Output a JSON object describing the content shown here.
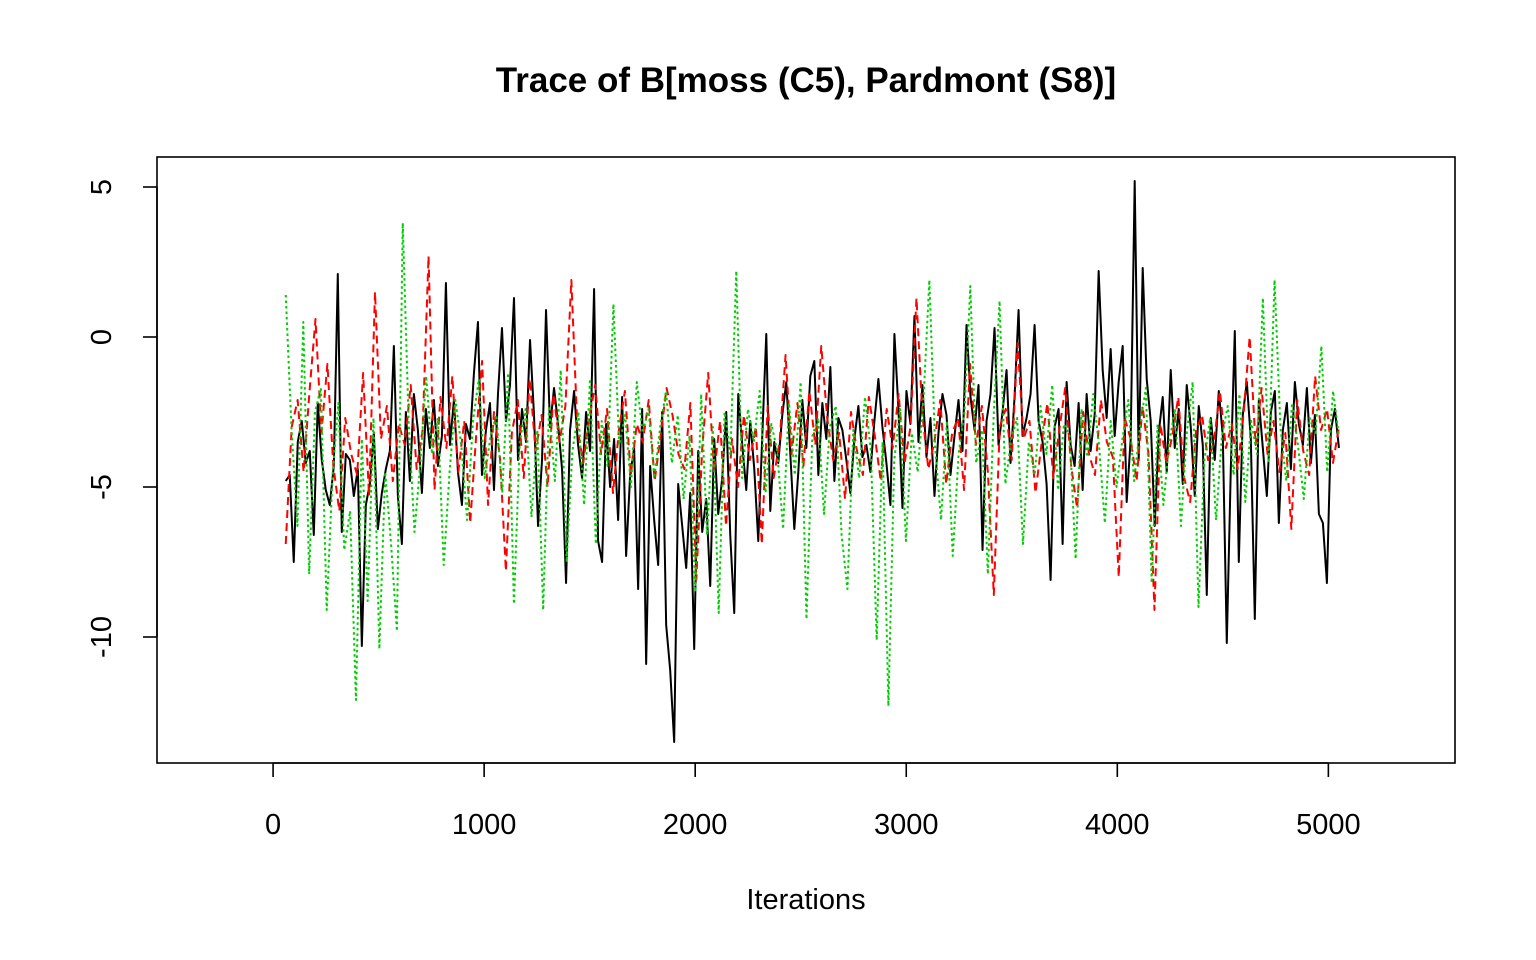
{
  "chart_data": {
    "type": "line",
    "title": "Trace of B[moss (C5), Pardmont (S8)]",
    "xlabel": "Iterations",
    "ylabel": "",
    "xlim": [
      -550,
      5600
    ],
    "ylim": [
      -14.2,
      6.0
    ],
    "x_ticks": [
      0,
      1000,
      2000,
      3000,
      4000,
      5000
    ],
    "y_ticks": [
      5,
      0,
      -5,
      -10
    ],
    "x_range": [
      60,
      5050
    ],
    "grid": false,
    "legend": "none",
    "series": [
      {
        "color": "#000000",
        "style": "solid",
        "values": [
          -4.8,
          -4.6,
          -7.5,
          -3.5,
          -2.8,
          -4.2,
          -3.8,
          -6.6,
          -2.2,
          -4.1,
          -5.1,
          -5.6,
          -4.3,
          2.1,
          -6.5,
          -3.9,
          -4.1,
          -5.3,
          -4.4,
          -10.3,
          -5.6,
          -4.9,
          -3.2,
          -6.4,
          -5.2,
          -4.4,
          -3.8,
          -0.3,
          -5.3,
          -6.9,
          -2.5,
          -4.8,
          -1.9,
          -3.1,
          -5.2,
          -2.4,
          -3.7,
          -2.1,
          -4.3,
          -3.3,
          1.8,
          -3.6,
          -2.1,
          -4.5,
          -5.6,
          -2.9,
          -3.4,
          -1.2,
          0.5,
          -4.6,
          -3.1,
          -2.2,
          -5.1,
          -1.9,
          0.3,
          -2.8,
          -1.6,
          1.3,
          -4.1,
          -2.4,
          -3.5,
          -0.1,
          -2.6,
          -6.3,
          -4.1,
          0.9,
          -3.0,
          -1.7,
          -2.9,
          -4.4,
          -8.2,
          -3.1,
          -1.8,
          -3.6,
          -4.7,
          -2.5,
          -3.8,
          1.6,
          -6.8,
          -7.5,
          -2.9,
          -5.0,
          -3.4,
          -6.1,
          -2.0,
          -7.3,
          -4.6,
          -3.7,
          -8.4,
          -2.4,
          -10.9,
          -4.3,
          -6.1,
          -7.6,
          -2.5,
          -9.6,
          -11.1,
          -13.5,
          -4.9,
          -6.3,
          -7.7,
          -5.2,
          -10.4,
          -3.8,
          -6.5,
          -5.4,
          -8.3,
          -3.4,
          -5.9,
          -4.7,
          -2.5,
          -6.6,
          -9.2,
          -1.9,
          -3.6,
          -5.1,
          -2.8,
          -4.4,
          -6.8,
          -3.3,
          0.1,
          -5.8,
          -3.5,
          -4.2,
          -2.6,
          -1.5,
          -3.9,
          -6.4,
          -4.5,
          -2.1,
          -3.7,
          -1.3,
          -0.8,
          -4.6,
          -2.2,
          -3.4,
          -1.0,
          -4.8,
          -2.7,
          -3.1,
          -4.1,
          -5.2,
          -3.4,
          -2.3,
          -4.0,
          -3.6,
          -4.5,
          -2.8,
          -1.4,
          -3.0,
          -4.2,
          -5.6,
          0.1,
          -2.4,
          -5.7,
          -1.8,
          -2.9,
          0.7,
          -3.5,
          -1.6,
          -4.0,
          -2.7,
          -5.3,
          -3.2,
          -1.9,
          -2.6,
          -4.6,
          -3.3,
          -2.1,
          -3.8,
          0.4,
          -2.0,
          -3.1,
          -1.6,
          -7.1,
          -2.8,
          -1.9,
          0.3,
          -3.6,
          -2.5,
          -1.1,
          -4.2,
          -2.0,
          0.9,
          -3.3,
          -2.7,
          -1.9,
          0.4,
          -2.8,
          -3.5,
          -4.9,
          -8.1,
          -3.0,
          -2.4,
          -6.9,
          -1.5,
          -3.6,
          -4.3,
          -2.2,
          -5.1,
          -1.9,
          -3.8,
          -2.6,
          2.2,
          -1.1,
          -2.7,
          -0.4,
          -3.3,
          -1.5,
          -0.3,
          -5.5,
          -3.4,
          5.2,
          -4.1,
          2.3,
          -1.4,
          -2.8,
          -6.3,
          -3.2,
          -2.0,
          -4.5,
          -1.1,
          -3.7,
          -2.4,
          -4.9,
          -1.6,
          -3.0,
          -5.3,
          -2.3,
          -3.6,
          -8.6,
          -2.7,
          -4.1,
          -1.8,
          -3.3,
          -10.2,
          -4.4,
          0.2,
          -7.5,
          -2.6,
          -1.5,
          -3.4,
          -9.4,
          -2.1,
          -3.7,
          -5.3,
          -2.5,
          -1.8,
          -6.2,
          -3.1,
          -2.2,
          -4.4,
          -1.5,
          -2.9,
          -3.6,
          -1.7,
          -4.2,
          -2.6,
          -5.9,
          -6.2,
          -8.2,
          -3.1,
          -2.4,
          -3.7
        ]
      },
      {
        "color": "#ff0000",
        "style": "dashed",
        "values": [
          -6.9,
          -3.0,
          -2.1,
          -4.5,
          -1.8,
          0.6,
          -3.2,
          -0.9,
          -4.3,
          -5.8,
          -2.7,
          -3.9,
          -4.6,
          -1.2,
          -5.3,
          1.5,
          -3.4,
          -2.3,
          -4.8,
          -2.9,
          -3.6,
          -1.6,
          -4.4,
          -3.1,
          2.7,
          -5.1,
          -2.0,
          -3.7,
          -1.3,
          -4.5,
          -2.8,
          -6.2,
          -3.3,
          -0.8,
          -5.6,
          -2.5,
          -4.0,
          -7.8,
          -3.2,
          -2.1,
          -4.7,
          -1.4,
          -3.8,
          -2.6,
          -5.0,
          -1.9,
          -3.5,
          -2.3,
          1.9,
          -3.0,
          -4.2,
          -2.7,
          -1.6,
          -3.9,
          -2.4,
          -5.2,
          -3.1,
          -1.8,
          -4.6,
          -2.9,
          -3.5,
          -2.1,
          -4.8,
          -3.3,
          -1.7,
          -2.6,
          -3.9,
          -4.4,
          -2.2,
          -8.1,
          -3.7,
          -1.2,
          -4.5,
          -2.8,
          -6.3,
          -3.4,
          -5.0,
          -2.6,
          -4.1,
          -3.0,
          -6.9,
          -2.3,
          -4.7,
          -3.5,
          -0.6,
          -3.9,
          -2.2,
          -4.3,
          -1.8,
          -3.6,
          -0.3,
          -2.7,
          -4.1,
          -3.2,
          -5.4,
          -2.5,
          -3.8,
          -4.6,
          -2.0,
          -3.3,
          -4.8,
          -2.4,
          -3.7,
          -1.9,
          -4.2,
          -3.0,
          1.3,
          -2.6,
          -4.4,
          -3.5,
          -2.1,
          -4.9,
          -3.2,
          -2.7,
          -5.1,
          -0.9,
          -3.6,
          -2.3,
          -4.5,
          -8.6,
          -3.0,
          -2.4,
          -4.1,
          -0.2,
          -3.4,
          -2.8,
          -5.2,
          -3.6,
          -2.2,
          -4.7,
          -3.1,
          -1.7,
          -4.3,
          -5.7,
          -2.5,
          -3.9,
          -4.6,
          -2.1,
          -3.5,
          -4.0,
          -8.0,
          -2.7,
          -3.4,
          -4.8,
          -2.3,
          -3.9,
          -9.1,
          -2.9,
          -4.2,
          -3.3,
          -2.0,
          -4.7,
          -5.5,
          -3.1,
          -2.6,
          -4.1,
          -3.5,
          -1.8,
          -3.7,
          -2.9,
          -4.4,
          -2.5,
          0.0,
          -3.6,
          -1.7,
          -3.9,
          -2.8,
          -4.5,
          -3.2,
          -6.4,
          -2.1,
          -3.8,
          -4.6,
          -1.3,
          -3.1,
          -2.4,
          -4.2,
          -3.0
        ]
      },
      {
        "color": "#00cd00",
        "style": "dotted",
        "values": [
          1.4,
          -3.1,
          -6.3,
          0.5,
          -7.9,
          -2.5,
          -1.7,
          -9.1,
          -4.6,
          -2.2,
          -7.1,
          -5.8,
          -12.1,
          -3.4,
          -8.8,
          -2.7,
          -10.4,
          -4.5,
          -6.9,
          -9.8,
          3.8,
          -2.8,
          -6.5,
          -4.2,
          -1.3,
          -3.9,
          -2.7,
          -7.6,
          -4.5,
          -2.1,
          -3.6,
          -6.1,
          -2.8,
          -1.4,
          -4.7,
          -3.3,
          -2.6,
          -5.2,
          -1.2,
          -8.9,
          -3.5,
          -2.4,
          -6.0,
          -3.1,
          -9.1,
          -2.3,
          -4.8,
          -1.1,
          -7.5,
          -3.8,
          -2.5,
          -5.6,
          -1.4,
          -6.9,
          -2.8,
          -4.3,
          1.1,
          -3.6,
          -2.6,
          -5.0,
          -1.5,
          -3.2,
          -2.4,
          -4.7,
          -3.0,
          -1.8,
          -4.2,
          -2.6,
          -5.4,
          -3.3,
          -8.5,
          -1.9,
          -6.6,
          -3.0,
          -9.2,
          -2.5,
          -3.9,
          2.2,
          -4.7,
          -2.4,
          -3.5,
          -1.8,
          -5.2,
          -2.9,
          -3.8,
          -6.4,
          -2.2,
          -4.6,
          -1.5,
          -9.4,
          -3.3,
          -2.7,
          -5.9,
          -3.0,
          -2.3,
          -6.6,
          -8.4,
          -3.1,
          -4.7,
          -2.0,
          -3.8,
          -10.1,
          -3.5,
          -12.3,
          -4.1,
          -2.4,
          -6.8,
          -3.2,
          -4.5,
          -2.1,
          1.9,
          -3.7,
          -6.1,
          -2.8,
          -7.3,
          -3.9,
          -2.5,
          1.7,
          -4.2,
          -3.1,
          -7.9,
          -2.6,
          1.2,
          -4.9,
          -3.4,
          -2.7,
          -6.9,
          -3.5,
          -4.6,
          -2.3,
          -3.9,
          -1.6,
          -5.1,
          -2.9,
          -3.3,
          -7.4,
          -2.4,
          -4.0,
          -1.9,
          -3.6,
          -6.2,
          -2.8,
          -5.0,
          -3.4,
          -2.1,
          -4.8,
          -3.0,
          -1.7,
          -8.2,
          -2.9,
          -5.6,
          -3.5,
          -2.4,
          -6.3,
          -3.2,
          -1.5,
          -9.0,
          -4.1,
          -2.7,
          -6.1,
          -3.3,
          -2.3,
          -4.6,
          -1.9,
          -5.5,
          -2.8,
          -3.9,
          1.3,
          -4.2,
          1.9,
          -3.0,
          -4.8,
          -2.2,
          -3.6,
          -5.4,
          -2.7,
          -3.2,
          -0.3,
          -4.5,
          -1.8,
          -3.3
        ]
      }
    ]
  }
}
